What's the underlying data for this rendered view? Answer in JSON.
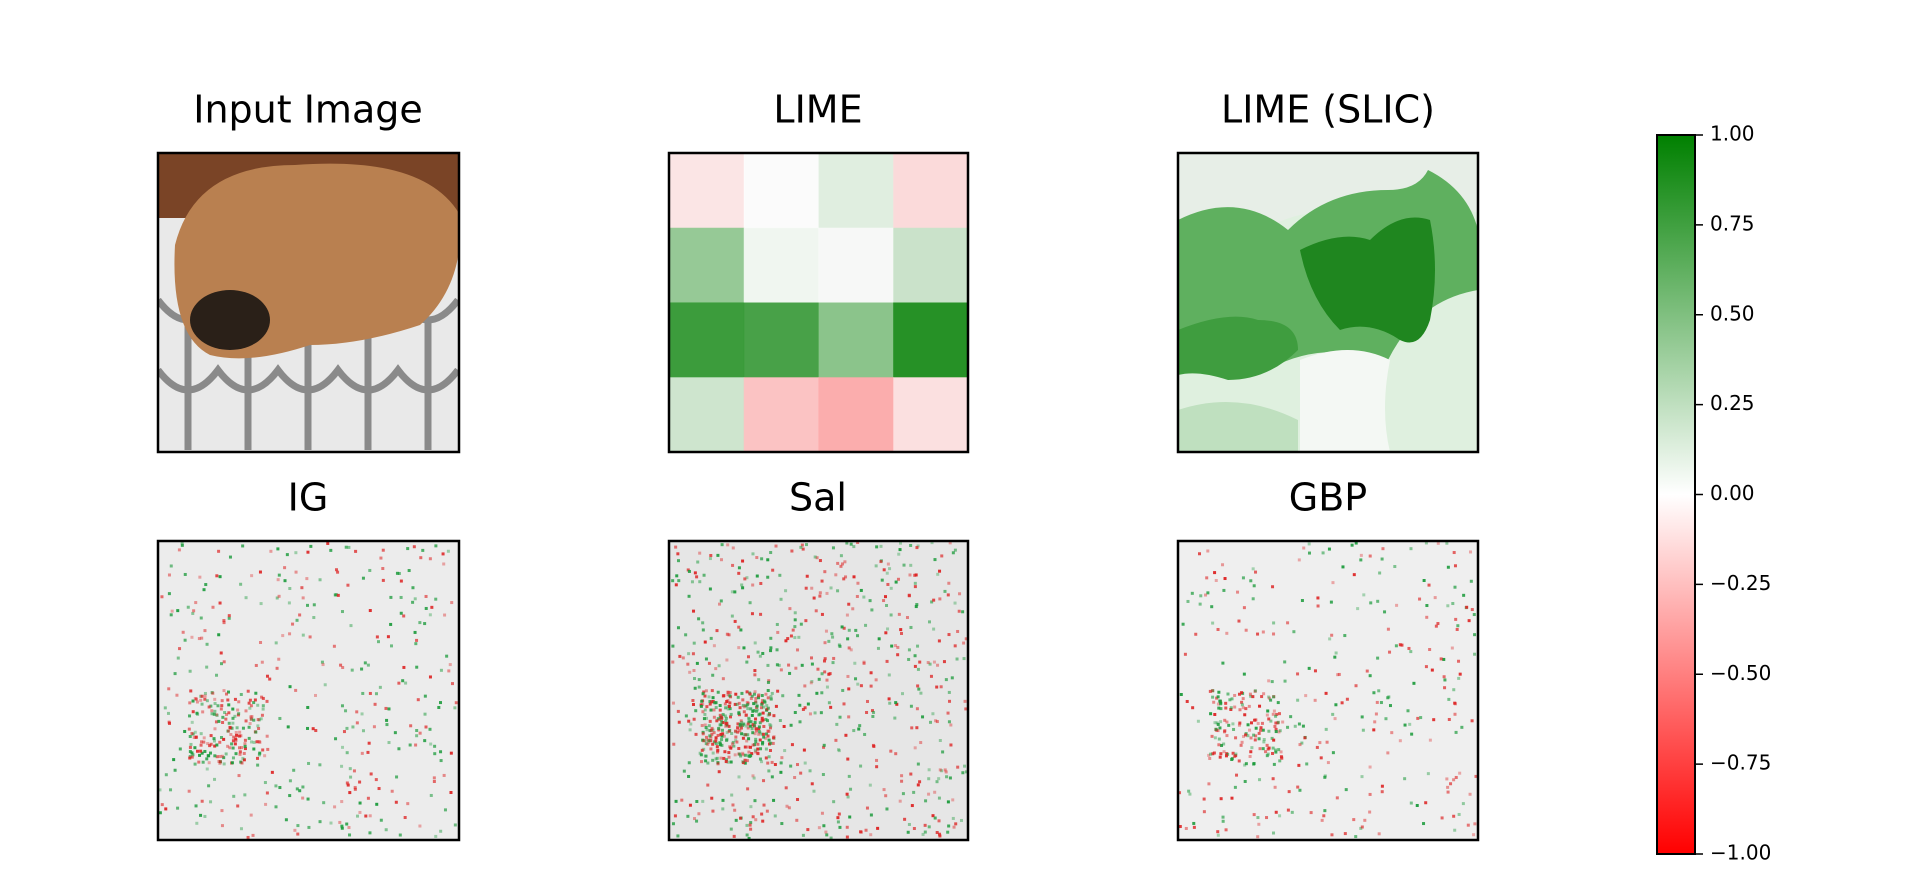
{
  "figure": {
    "panels": [
      {
        "title": "Input Image"
      },
      {
        "title": "LIME"
      },
      {
        "title": "LIME (SLIC)"
      },
      {
        "title": "IG"
      },
      {
        "title": "Sal"
      },
      {
        "title": "GBP"
      }
    ]
  },
  "chart_data": {
    "type": "colorbar",
    "ylim": [
      -1,
      1
    ],
    "yticks": [
      {
        "value": -1,
        "label": "−1.00"
      },
      {
        "value": -0.75,
        "label": "−0.75"
      },
      {
        "value": -0.5,
        "label": "−0.50"
      },
      {
        "value": -0.25,
        "label": "−0.25"
      },
      {
        "value": 0,
        "label": "0.00"
      },
      {
        "value": 0.25,
        "label": "0.25"
      },
      {
        "value": 0.5,
        "label": "0.50"
      },
      {
        "value": 0.75,
        "label": "0.75"
      },
      {
        "value": 1,
        "label": "1.00"
      }
    ],
    "colors": [
      "#ff0000",
      "#ffffff",
      "#008000"
    ],
    "lime_grid": [
      [
        -0.1,
        0.0,
        0.12,
        -0.15
      ],
      [
        0.45,
        0.05,
        0.02,
        0.22
      ],
      [
        0.85,
        0.8,
        0.5,
        0.95
      ],
      [
        0.2,
        -0.25,
        -0.35,
        -0.12
      ]
    ]
  }
}
